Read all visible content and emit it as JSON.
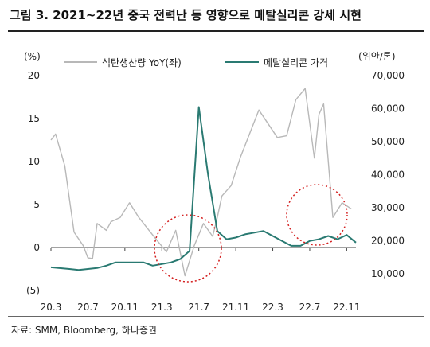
{
  "header": {
    "title": "그림 3. 2021~22년 중국 전력난 등 영향으로 메탈실리콘 강세 시현"
  },
  "footer": {
    "source": "자료: SMM, Bloomberg, 하나증권"
  },
  "chart_data": {
    "type": "line",
    "left_unit": "(%)",
    "right_unit": "(위안/톤)",
    "x_ticks": [
      "20.3",
      "20.7",
      "20.11",
      "21.3",
      "21.7",
      "21.11",
      "22.3",
      "22.7",
      "22.11"
    ],
    "y_left": {
      "range": [
        -5,
        20
      ],
      "ticks": [
        "(5)",
        "0",
        "5",
        "10",
        "15",
        "20"
      ],
      "tick_values": [
        -5,
        0,
        5,
        10,
        15,
        20
      ]
    },
    "y_right": {
      "range": [
        5000,
        70000
      ],
      "ticks": [
        "10,000",
        "20,000",
        "30,000",
        "40,000",
        "50,000",
        "60,000",
        "70,000"
      ],
      "tick_values": [
        10000,
        20000,
        30000,
        40000,
        50000,
        60000,
        70000
      ]
    },
    "grid": false,
    "legend_position": "top",
    "series": [
      {
        "name": "석탄생산량 YoY(좌)",
        "axis": "left",
        "color": "#b8b8b8",
        "x": [
          0,
          0.5,
          1.5,
          2.5,
          3.5,
          4,
          4.5,
          5,
          6,
          6.5,
          7.5,
          8.5,
          9.5,
          11.5,
          12.5,
          13.5,
          14.5,
          15.5,
          16.5,
          17.5,
          18,
          18.5,
          19.5,
          20.5,
          22.5,
          24.5,
          25.5,
          26.5,
          27.5,
          28.5,
          29,
          29.5,
          30.5,
          31.5,
          32.5
        ],
        "values": [
          12.5,
          13.2,
          9.5,
          1.8,
          0.2,
          -1.2,
          -1.3,
          2.8,
          2.0,
          3.0,
          3.5,
          5.2,
          3.5,
          0.8,
          -0.5,
          2.0,
          -3.3,
          0.2,
          2.8,
          1.3,
          3.5,
          6.0,
          7.2,
          10.5,
          16.0,
          12.8,
          13.0,
          17.2,
          18.5,
          10.4,
          15.5,
          16.7,
          3.5,
          5.2,
          4.5
        ]
      },
      {
        "name": "메탈실리콘 가격",
        "axis": "right",
        "color": "#2a7a72",
        "x": [
          0,
          2,
          3,
          4,
          5,
          6,
          7,
          8,
          9,
          10,
          11,
          12,
          13,
          14,
          15,
          16,
          17,
          18,
          19,
          20,
          21,
          22,
          23,
          24,
          25,
          26,
          27,
          28,
          29,
          30,
          31,
          32,
          33
        ],
        "values": [
          12000,
          11500,
          11200,
          11500,
          11800,
          12500,
          13500,
          13500,
          13500,
          13500,
          12500,
          13000,
          13500,
          14500,
          17000,
          60500,
          40000,
          23000,
          20500,
          21000,
          22000,
          22500,
          23000,
          21500,
          20000,
          18500,
          18500,
          20000,
          20500,
          21500,
          20500,
          21800,
          19500
        ]
      }
    ]
  }
}
